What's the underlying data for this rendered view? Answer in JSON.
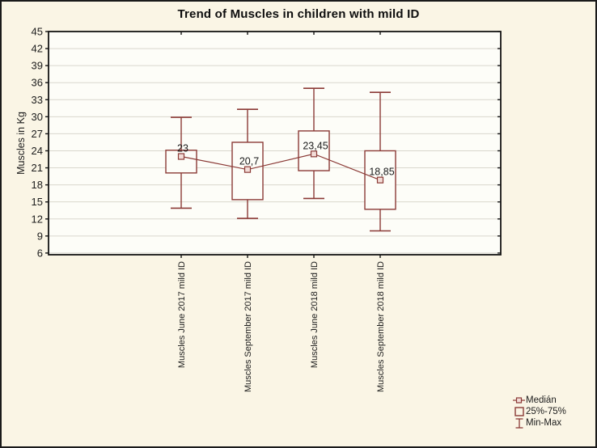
{
  "title": "Trend of Muscles in children with mild ID",
  "y_axis": {
    "label": "Muscles in Kg"
  },
  "legend": {
    "items": [
      {
        "icon": "median-marker-icon",
        "label": "Medián"
      },
      {
        "icon": "quartile-box-icon",
        "label": "25%-75%"
      },
      {
        "icon": "min-max-whisker-icon",
        "label": "Min-Max"
      }
    ]
  },
  "colors": {
    "background": "#faf5e5",
    "plot_background": "#fdfdf8",
    "box": "#8b3a36",
    "median_fill": "#f3ddd8",
    "grid": "#d9d7cd",
    "frame": "#141414",
    "text": "#1c1c1c"
  },
  "chart_data": {
    "type": "boxplot",
    "title": "Trend of Muscles in children with mild ID",
    "ylabel": "Muscles in Kg",
    "xlabel": "",
    "ylim": [
      6,
      45
    ],
    "ytick_step": 3,
    "yticks": [
      45,
      42,
      39,
      36,
      33,
      30,
      27,
      24,
      21,
      18,
      15,
      12,
      9,
      6
    ],
    "grid": true,
    "legend": [
      "Medián",
      "25%-75%",
      "Min-Max"
    ],
    "legend_position": "bottom-right",
    "categories": [
      "Muscles June 2017 mild ID",
      "Muscles September 2017 mild ID",
      "Muscles June 2018 mild ID",
      "Muscles September 2018 mild ID"
    ],
    "series": [
      {
        "category": "Muscles June 2017 mild ID",
        "min": 13.9,
        "q1": 20.1,
        "median": 23.0,
        "q3": 24.1,
        "max": 29.9,
        "median_label": "23"
      },
      {
        "category": "Muscles September 2017 mild ID",
        "min": 12.1,
        "q1": 15.4,
        "median": 20.7,
        "q3": 25.5,
        "max": 31.3,
        "median_label": "20,7"
      },
      {
        "category": "Muscles June 2018 mild ID",
        "min": 15.6,
        "q1": 20.5,
        "median": 23.45,
        "q3": 27.5,
        "max": 35.0,
        "median_label": "23,45"
      },
      {
        "category": "Muscles September 2018 mild ID",
        "min": 9.9,
        "q1": 13.7,
        "median": 18.85,
        "q3": 24.0,
        "max": 34.3,
        "median_label": "18,85"
      }
    ]
  }
}
